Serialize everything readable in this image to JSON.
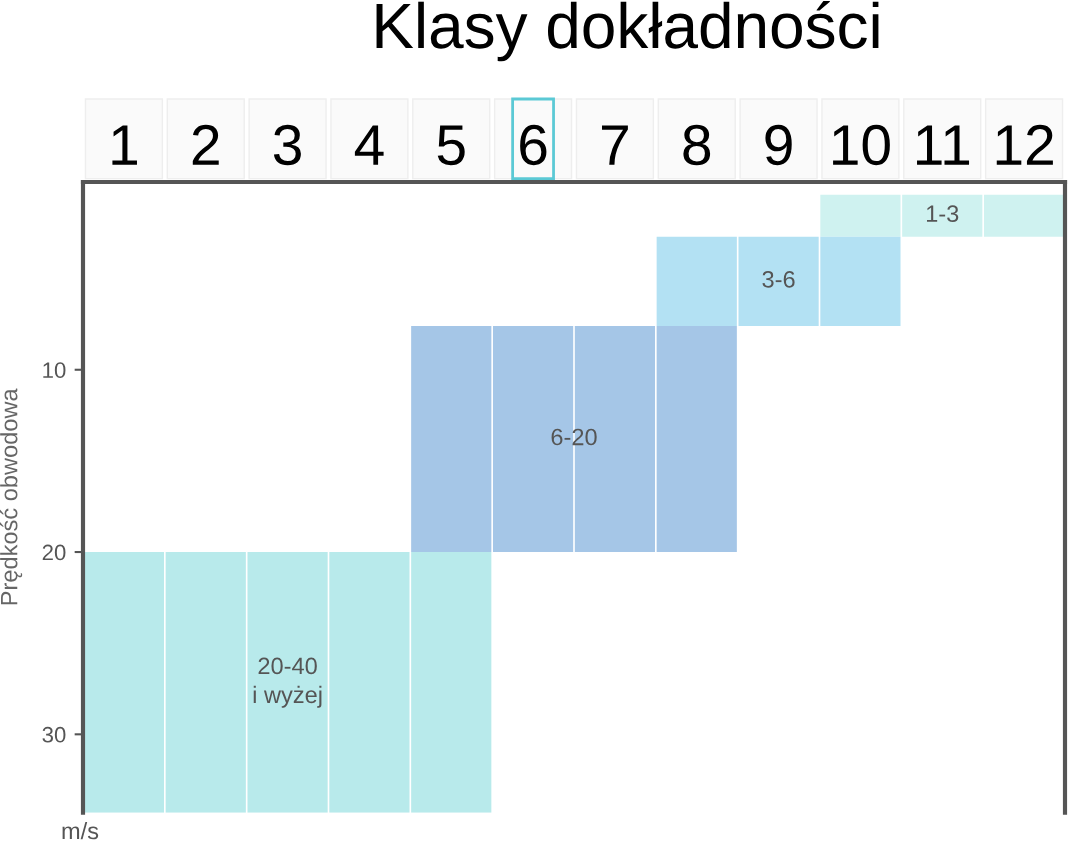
{
  "chart_data": {
    "type": "bar",
    "title": "Klasy dokładności",
    "ylabel": "Prędkość obwodowa",
    "annotations": [
      "m/s"
    ],
    "categories": [
      "1",
      "2",
      "3",
      "4",
      "5",
      "6",
      "7",
      "8",
      "9",
      "10",
      "11",
      "12"
    ],
    "series": [
      {
        "name": "1-3",
        "color": "#cff2f0",
        "values": [
          null,
          null,
          null,
          null,
          null,
          null,
          null,
          null,
          null,
          2.3,
          2.3,
          2.3
        ],
        "base": [
          null,
          null,
          null,
          null,
          null,
          null,
          null,
          null,
          null,
          0.4,
          0.4,
          0.4
        ]
      },
      {
        "name": "3-6",
        "color": "#b3e1f3",
        "values": [
          null,
          null,
          null,
          null,
          null,
          null,
          null,
          4.9,
          4.9,
          4.9,
          null,
          null
        ],
        "base": [
          null,
          null,
          null,
          null,
          null,
          null,
          null,
          2.7,
          2.7,
          2.7,
          null,
          null
        ]
      },
      {
        "name": "6-20",
        "color": "#a5c6e7",
        "values": [
          null,
          null,
          null,
          null,
          12.4,
          12.4,
          12.4,
          12.4,
          null,
          null,
          null,
          null
        ],
        "base": [
          null,
          null,
          null,
          null,
          7.6,
          7.6,
          7.6,
          7.6,
          null,
          null,
          null,
          null
        ]
      },
      {
        "name": "20-40\ni wyżej",
        "color": "#b8eaeb",
        "values": [
          14.3,
          14.3,
          14.3,
          14.3,
          14.3,
          null,
          null,
          null,
          null,
          null,
          null,
          null
        ],
        "base": [
          20.0,
          20.0,
          20.0,
          20.0,
          20.0,
          null,
          null,
          null,
          null,
          null,
          null,
          null
        ]
      }
    ],
    "ylim": [
      34.3,
      -0.3
    ],
    "yticks": [
      10,
      20,
      30
    ]
  }
}
